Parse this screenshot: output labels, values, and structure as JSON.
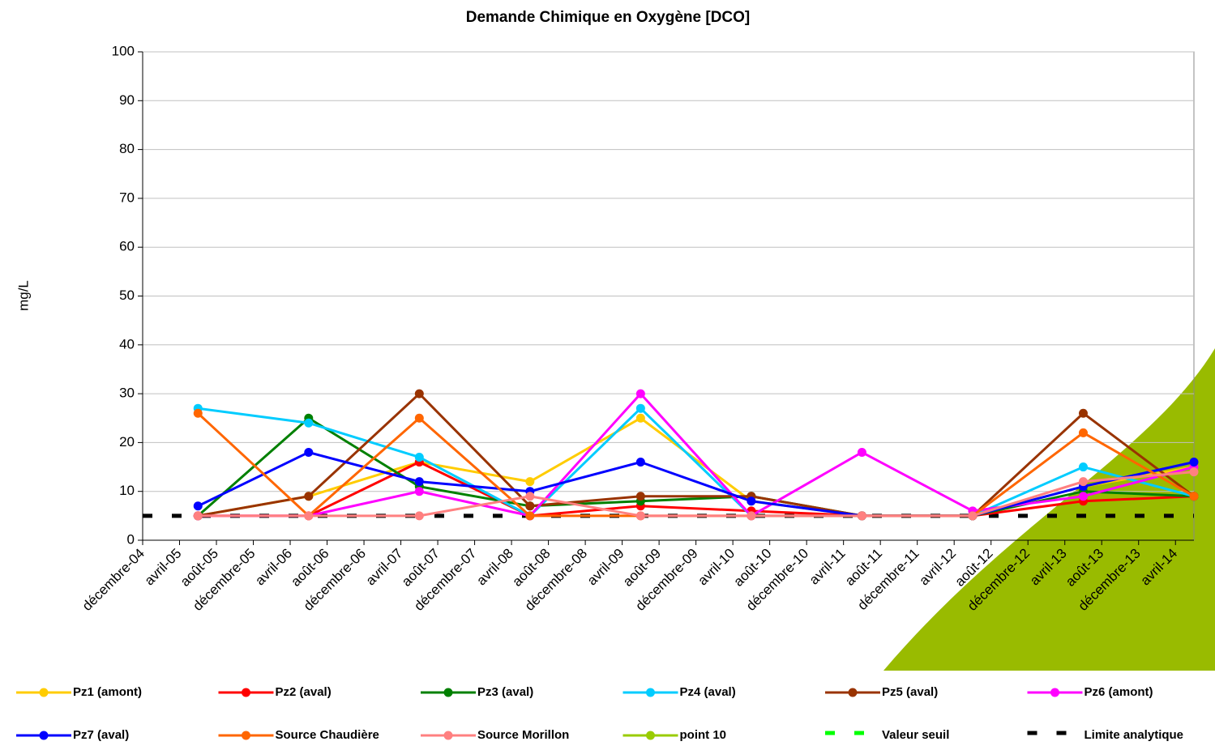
{
  "chart_data": {
    "type": "line",
    "title": "Demande Chimique en Oxygène [DCO]",
    "y_label": "mg/L",
    "x": [
      "2005-06",
      "2006-06",
      "2007-06",
      "2008-06",
      "2009-06",
      "2010-06",
      "2011-06",
      "2012-06",
      "2013-06",
      "2014-06"
    ],
    "xlim": [
      "2004-12",
      "2014-06"
    ],
    "xticks": [
      {
        "value": "2004-12",
        "label": "décembre-04"
      },
      {
        "value": "2005-04",
        "label": "avril-05"
      },
      {
        "value": "2005-08",
        "label": "août-05"
      },
      {
        "value": "2005-12",
        "label": "décembre-05"
      },
      {
        "value": "2006-04",
        "label": "avril-06"
      },
      {
        "value": "2006-08",
        "label": "août-06"
      },
      {
        "value": "2006-12",
        "label": "décembre-06"
      },
      {
        "value": "2007-04",
        "label": "avril-07"
      },
      {
        "value": "2007-08",
        "label": "août-07"
      },
      {
        "value": "2007-12",
        "label": "décembre-07"
      },
      {
        "value": "2008-04",
        "label": "avril-08"
      },
      {
        "value": "2008-08",
        "label": "août-08"
      },
      {
        "value": "2008-12",
        "label": "décembre-08"
      },
      {
        "value": "2009-04",
        "label": "avril-09"
      },
      {
        "value": "2009-08",
        "label": "août-09"
      },
      {
        "value": "2009-12",
        "label": "décembre-09"
      },
      {
        "value": "2010-04",
        "label": "avril-10"
      },
      {
        "value": "2010-08",
        "label": "août-10"
      },
      {
        "value": "2010-12",
        "label": "décembre-10"
      },
      {
        "value": "2011-04",
        "label": "avril-11"
      },
      {
        "value": "2011-08",
        "label": "août-11"
      },
      {
        "value": "2011-12",
        "label": "décembre-11"
      },
      {
        "value": "2012-04",
        "label": "avril-12"
      },
      {
        "value": "2012-08",
        "label": "août-12"
      },
      {
        "value": "2012-12",
        "label": "décembre-12"
      },
      {
        "value": "2013-04",
        "label": "avril-13"
      },
      {
        "value": "2013-08",
        "label": "août-13"
      },
      {
        "value": "2013-12",
        "label": "décembre-13"
      },
      {
        "value": "2014-04",
        "label": "avril-14"
      }
    ],
    "ylim": [
      0,
      100
    ],
    "yticks": [
      0,
      10,
      20,
      30,
      40,
      50,
      60,
      70,
      80,
      90,
      100
    ],
    "grid": true,
    "series": [
      {
        "name": "Pz1 (amont)",
        "color": "#ffcc00",
        "values": [
          5,
          9,
          16,
          12,
          25,
          8,
          5,
          5,
          11,
          15
        ]
      },
      {
        "name": "Pz2 (aval)",
        "color": "#ff0000",
        "values": [
          5,
          5,
          16,
          5,
          7,
          6,
          5,
          5,
          8,
          9
        ]
      },
      {
        "name": "Pz3 (aval)",
        "color": "#008000",
        "values": [
          5,
          25,
          11,
          7,
          8,
          9,
          5,
          5,
          10,
          9
        ]
      },
      {
        "name": "Pz4 (aval)",
        "color": "#00ccff",
        "values": [
          27,
          24,
          17,
          5,
          27,
          5,
          5,
          5,
          15,
          9
        ]
      },
      {
        "name": "Pz5 (aval)",
        "color": "#993300",
        "values": [
          5,
          9,
          30,
          7,
          9,
          9,
          5,
          5,
          26,
          9
        ]
      },
      {
        "name": "Pz6 (amont)",
        "color": "#ff00ff",
        "values": [
          5,
          5,
          10,
          5,
          30,
          5,
          18,
          6,
          9,
          15
        ]
      },
      {
        "name": "Pz7 (aval)",
        "color": "#0000ff",
        "values": [
          7,
          18,
          12,
          10,
          16,
          8,
          5,
          5,
          11,
          16
        ]
      },
      {
        "name": "Source Chaudière",
        "color": "#ff6600",
        "values": [
          26,
          5,
          25,
          5,
          5,
          5,
          5,
          5,
          22,
          9
        ]
      },
      {
        "name": "Source Morillon",
        "color": "#ff8080",
        "values": [
          5,
          5,
          5,
          9,
          5,
          5,
          5,
          5,
          12,
          14
        ]
      },
      {
        "name": "point 10",
        "color": "#99cc00",
        "values": [
          null,
          null,
          null,
          null,
          null,
          null,
          null,
          null,
          null,
          null
        ]
      }
    ],
    "reference_lines": [
      {
        "name": "Valeur seuil",
        "color": "#00ff00",
        "value": null
      },
      {
        "name": "Limite analytique",
        "color": "#000000",
        "value": 5
      }
    ]
  }
}
